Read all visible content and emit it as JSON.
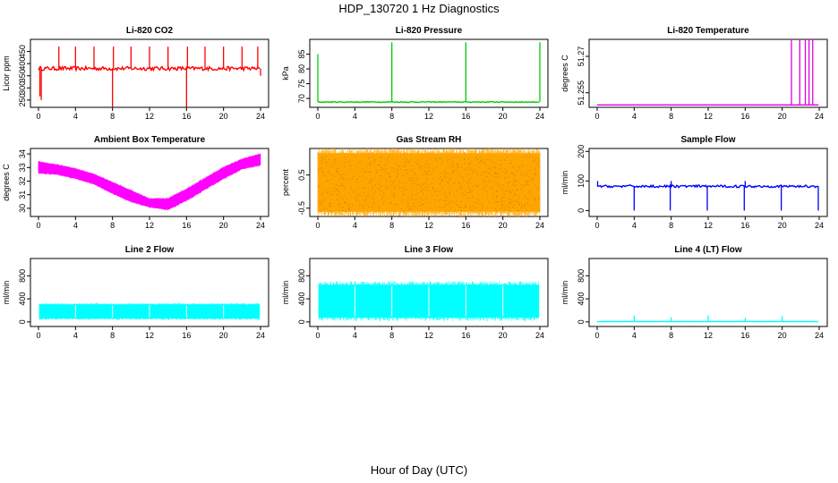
{
  "figure": {
    "title": "HDP_130720  1 Hz Diagnostics",
    "xlabel": "Hour of Day (UTC)"
  },
  "chart_data": [
    {
      "type": "line",
      "title": "Li-820 CO2",
      "ylabel": "Licor ppm",
      "color": "#ff0000",
      "xlim": [
        0,
        24
      ],
      "ylim": [
        220,
        500
      ],
      "xticks": [
        "0",
        "4",
        "8",
        "12",
        "16",
        "20",
        "24"
      ],
      "yticks": [
        250,
        300,
        350,
        400,
        450
      ],
      "series": [
        {
          "name": "CO2",
          "baseline": 380,
          "noise": 8,
          "spikes": [
            {
              "x": 0.15,
              "v": 265
            },
            {
              "x": 0.3,
              "v": 250
            },
            {
              "x": 2.2,
              "v": 470
            },
            {
              "x": 4.0,
              "v": 470
            },
            {
              "x": 6.0,
              "v": 470
            },
            {
              "x": 8.0,
              "v": 220
            },
            {
              "x": 8.1,
              "v": 470
            },
            {
              "x": 10.0,
              "v": 470
            },
            {
              "x": 12.0,
              "v": 470
            },
            {
              "x": 14.0,
              "v": 470
            },
            {
              "x": 16.0,
              "v": 220
            },
            {
              "x": 16.1,
              "v": 470
            },
            {
              "x": 18.0,
              "v": 470
            },
            {
              "x": 20.0,
              "v": 470
            },
            {
              "x": 22.0,
              "v": 470
            },
            {
              "x": 23.7,
              "v": 470
            },
            {
              "x": 24.0,
              "v": 350
            }
          ]
        }
      ]
    },
    {
      "type": "line",
      "title": "Li-820 Pressure",
      "ylabel": "kPa",
      "color": "#00cc00",
      "xlim": [
        0,
        24
      ],
      "ylim": [
        67,
        90
      ],
      "xticks": [
        "0",
        "4",
        "8",
        "12",
        "16",
        "20",
        "24"
      ],
      "yticks": [
        70,
        75,
        80,
        85
      ],
      "series": [
        {
          "name": "Pressure",
          "baseline": 68.8,
          "noise": 0.15,
          "spikes": [
            {
              "x": 0.0,
              "v": 85
            },
            {
              "x": 8.0,
              "v": 89
            },
            {
              "x": 16.0,
              "v": 89
            },
            {
              "x": 24.0,
              "v": 89
            }
          ]
        }
      ]
    },
    {
      "type": "line",
      "title": "Li-820 Temperature",
      "ylabel": "degrees C",
      "color": "#e000e0",
      "xlim": [
        0,
        24
      ],
      "ylim": [
        51.249,
        51.277
      ],
      "xticks": [
        "0",
        "4",
        "8",
        "12",
        "16",
        "20",
        "24"
      ],
      "yticks": [
        51.255,
        51.27
      ],
      "series": [
        {
          "name": "Temperature",
          "baseline": 51.25,
          "noise": 0,
          "spikes": [
            {
              "x": 21.0,
              "v": 51.277
            },
            {
              "x": 21.9,
              "v": 51.277
            },
            {
              "x": 22.5,
              "v": 51.277
            },
            {
              "x": 22.9,
              "v": 51.277
            },
            {
              "x": 23.3,
              "v": 51.277
            }
          ]
        }
      ]
    },
    {
      "type": "area",
      "title": "Ambient Box Temperature",
      "ylabel": "degrees C",
      "color": "#ff00ff",
      "xlim": [
        0,
        24
      ],
      "ylim": [
        29.4,
        34.4
      ],
      "xticks": [
        "0",
        "4",
        "8",
        "12",
        "16",
        "20",
        "24"
      ],
      "yticks": [
        30,
        31,
        32,
        33,
        34
      ],
      "series": [
        {
          "name": "Box temp",
          "x": [
            0,
            2,
            4,
            6,
            8,
            10,
            12,
            14,
            16,
            18,
            20,
            22,
            24
          ],
          "low": [
            32.6,
            32.5,
            32.2,
            31.8,
            31.1,
            30.5,
            30.1,
            29.9,
            30.6,
            31.4,
            32.2,
            32.9,
            33.2
          ],
          "high": [
            33.4,
            33.2,
            32.9,
            32.5,
            31.9,
            31.3,
            30.7,
            30.7,
            31.4,
            32.2,
            33.0,
            33.6,
            34.0
          ]
        }
      ]
    },
    {
      "type": "area",
      "title": "Gas Stream RH",
      "ylabel": "percent",
      "color": "#ffa500",
      "xlim": [
        0,
        24
      ],
      "ylim": [
        -0.75,
        1.3
      ],
      "xticks": [
        "0",
        "4",
        "8",
        "12",
        "16",
        "20",
        "24"
      ],
      "yticks": [
        -0.5,
        0.5
      ],
      "series": [
        {
          "name": "RH",
          "x": [
            0,
            24
          ],
          "low": [
            -0.6,
            -0.6
          ],
          "high": [
            1.15,
            1.15
          ]
        }
      ]
    },
    {
      "type": "line",
      "title": "Sample Flow",
      "ylabel": "ml/min",
      "color": "#0000ff",
      "xlim": [
        0,
        24
      ],
      "ylim": [
        -20,
        210
      ],
      "xticks": [
        "0",
        "4",
        "8",
        "12",
        "16",
        "20",
        "24"
      ],
      "yticks": [
        0,
        100,
        200
      ],
      "series": [
        {
          "name": "Sample flow",
          "baseline": 82,
          "noise": 4,
          "spikes": [
            {
              "x": 0.05,
              "v": 100
            },
            {
              "x": 4.0,
              "v": 0
            },
            {
              "x": 7.9,
              "v": 0
            },
            {
              "x": 8.0,
              "v": 100
            },
            {
              "x": 11.9,
              "v": 0
            },
            {
              "x": 15.9,
              "v": 0
            },
            {
              "x": 16.0,
              "v": 100
            },
            {
              "x": 19.9,
              "v": 0
            },
            {
              "x": 23.9,
              "v": 0
            }
          ]
        }
      ]
    },
    {
      "type": "area",
      "title": "Line 2 Flow",
      "ylabel": "ml/min",
      "color": "#00ffff",
      "xlim": [
        0,
        24
      ],
      "ylim": [
        -80,
        1100
      ],
      "xticks": [
        "0",
        "4",
        "8",
        "12",
        "16",
        "20",
        "24"
      ],
      "yticks": [
        0,
        400,
        800
      ],
      "series": [
        {
          "name": "Line 2",
          "x": [
            0.1,
            23.9
          ],
          "low": [
            60,
            60
          ],
          "high": [
            300,
            300
          ]
        }
      ]
    },
    {
      "type": "area",
      "title": "Line 3 Flow",
      "ylabel": "ml/min",
      "color": "#00ffff",
      "xlim": [
        0,
        24
      ],
      "ylim": [
        -80,
        1100
      ],
      "xticks": [
        "0",
        "4",
        "8",
        "12",
        "16",
        "20",
        "24"
      ],
      "yticks": [
        0,
        400,
        800
      ],
      "series": [
        {
          "name": "Line 3",
          "x": [
            0.1,
            23.9
          ],
          "low": [
            80,
            80
          ],
          "high": [
            640,
            640
          ]
        }
      ]
    },
    {
      "type": "line",
      "title": "Line 4 (LT) Flow",
      "ylabel": "ml/min",
      "color": "#00ffff",
      "xlim": [
        0,
        24
      ],
      "ylim": [
        -80,
        1100
      ],
      "xticks": [
        "0",
        "4",
        "8",
        "12",
        "16",
        "20",
        "24"
      ],
      "yticks": [
        0,
        400,
        800
      ],
      "series": [
        {
          "name": "Line 4",
          "baseline": 5,
          "noise": 2,
          "spikes": [
            {
              "x": 4.0,
              "v": 110
            },
            {
              "x": 8.0,
              "v": 80
            },
            {
              "x": 12.0,
              "v": 110
            },
            {
              "x": 16.0,
              "v": 70
            },
            {
              "x": 20.0,
              "v": 100
            }
          ]
        }
      ]
    }
  ]
}
